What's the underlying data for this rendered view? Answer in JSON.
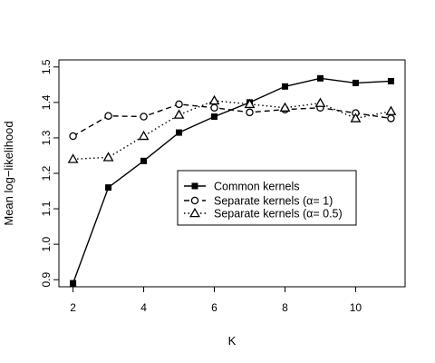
{
  "chart_data": {
    "type": "line",
    "xlabel": "K",
    "ylabel": "Mean log−likelihood",
    "xlim": [
      1.6,
      11.4
    ],
    "ylim": [
      0.88,
      1.52
    ],
    "xticks": [
      2,
      4,
      6,
      8,
      10
    ],
    "yticks": [
      0.9,
      1.0,
      1.1,
      1.2,
      1.3,
      1.4,
      1.5
    ],
    "xtick_labels": [
      "2",
      "4",
      "6",
      "8",
      "10"
    ],
    "ytick_labels": [
      "0.9",
      "1.0",
      "1.1",
      "1.2",
      "1.3",
      "1.4",
      "1.5"
    ],
    "legend_position": "center-right",
    "series": [
      {
        "name": "Common kernels",
        "marker": "filled-square",
        "line": "solid",
        "x": [
          2,
          3,
          4,
          5,
          6,
          7,
          8,
          9,
          10,
          11
        ],
        "values": [
          0.89,
          1.16,
          1.235,
          1.315,
          1.36,
          1.4,
          1.445,
          1.468,
          1.455,
          1.46
        ]
      },
      {
        "name": "Separate kernels (α= 1)",
        "marker": "open-circle",
        "line": "dashed",
        "x": [
          2,
          3,
          4,
          5,
          6,
          7,
          8,
          9,
          10,
          11
        ],
        "values": [
          1.305,
          1.362,
          1.36,
          1.395,
          1.385,
          1.372,
          1.38,
          1.385,
          1.37,
          1.355
        ]
      },
      {
        "name": "Separate kernels (α= 0.5)",
        "marker": "open-triangle",
        "line": "dotted",
        "x": [
          2,
          3,
          4,
          5,
          6,
          7,
          8,
          9,
          10,
          11
        ],
        "values": [
          1.24,
          1.245,
          1.305,
          1.365,
          1.405,
          1.395,
          1.385,
          1.398,
          1.355,
          1.375
        ]
      }
    ]
  }
}
